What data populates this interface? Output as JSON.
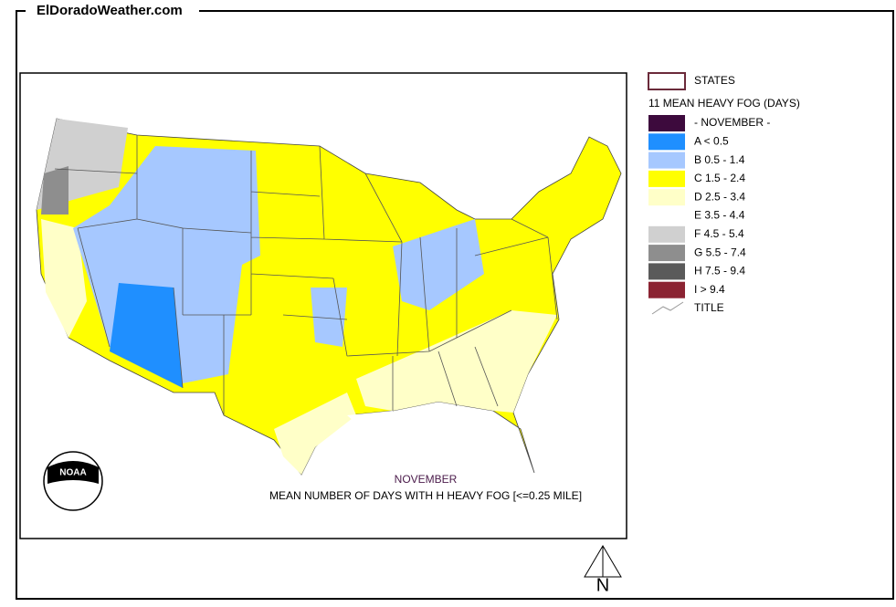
{
  "header": {
    "site": "ElDoradoWeather.com"
  },
  "legend": {
    "states": "STATES",
    "heading": "11 MEAN HEAVY FOG (DAYS)",
    "items": [
      {
        "label": "- NOVEMBER -",
        "color": "#3d0a3d"
      },
      {
        "label": "A < 0.5",
        "color": "#1f8fff"
      },
      {
        "label": "B 0.5 - 1.4",
        "color": "#a6c8ff"
      },
      {
        "label": "C 1.5 - 2.4",
        "color": "#ffff00"
      },
      {
        "label": "D 2.5 - 3.4",
        "color": "#ffffc8"
      },
      {
        "label": "E 3.5 - 4.4",
        "color": "#ffffff"
      },
      {
        "label": "F 4.5 - 5.4",
        "color": "#d0d0d0"
      },
      {
        "label": "G 5.5 - 7.4",
        "color": "#8e8e8e"
      },
      {
        "label": "H 7.5 - 9.4",
        "color": "#5a5a5a"
      },
      {
        "label": "I > 9.4",
        "color": "#8b2332"
      }
    ],
    "title_item": "TITLE"
  },
  "map": {
    "title": "NOVEMBER",
    "subtitle": "MEAN NUMBER OF DAYS WITH H HEAVY FOG [<=0.25 MILE]"
  },
  "logo": {
    "text": "NOAA"
  },
  "north": {
    "label": "N"
  }
}
